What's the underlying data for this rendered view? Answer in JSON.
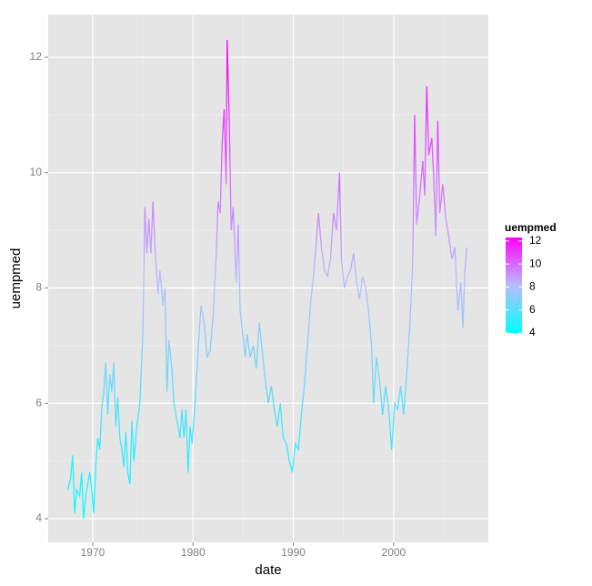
{
  "chart_data": {
    "type": "line",
    "x_label": "date",
    "y_label": "uempmed",
    "xlim": [
      1965.56,
      2009.44
    ],
    "ylim": [
      3.59,
      12.74
    ],
    "xticks": [
      1970,
      1980,
      1990,
      2000
    ],
    "yticks": [
      4,
      6,
      8,
      10,
      12
    ],
    "xminor": [
      1965,
      1975,
      1985,
      1995,
      2005
    ],
    "yminor": [
      5,
      7,
      9,
      11
    ],
    "grid": true,
    "colorbar": {
      "title": "uempmed",
      "low": "#00ffff",
      "mid": "#b8bcff",
      "high": "#ff00ff",
      "range": [
        4,
        12.3
      ],
      "ticks": [
        4,
        6,
        8,
        10,
        12
      ]
    },
    "x": [
      1967.5,
      1967.8,
      1968.0,
      1968.2,
      1968.4,
      1968.7,
      1968.9,
      1969.1,
      1969.3,
      1969.5,
      1969.7,
      1969.9,
      1970.1,
      1970.3,
      1970.5,
      1970.7,
      1970.9,
      1971.1,
      1971.3,
      1971.5,
      1971.7,
      1971.9,
      1972.1,
      1972.3,
      1972.5,
      1972.7,
      1972.9,
      1973.1,
      1973.3,
      1973.5,
      1973.7,
      1973.9,
      1974.1,
      1974.4,
      1974.7,
      1975.0,
      1975.2,
      1975.4,
      1975.6,
      1975.8,
      1976.0,
      1976.2,
      1976.5,
      1976.7,
      1977.0,
      1977.2,
      1977.4,
      1977.6,
      1977.9,
      1978.1,
      1978.4,
      1978.7,
      1978.9,
      1979.1,
      1979.3,
      1979.5,
      1979.7,
      1979.9,
      1980.2,
      1980.5,
      1980.8,
      1981.1,
      1981.4,
      1981.7,
      1982.0,
      1982.3,
      1982.5,
      1982.7,
      1982.9,
      1983.1,
      1983.3,
      1983.4,
      1983.6,
      1983.8,
      1984.0,
      1984.3,
      1984.5,
      1984.7,
      1984.9,
      1985.2,
      1985.4,
      1985.7,
      1986.0,
      1986.3,
      1986.6,
      1986.9,
      1987.2,
      1987.5,
      1987.8,
      1988.1,
      1988.4,
      1988.7,
      1989.0,
      1989.3,
      1989.6,
      1989.9,
      1990.2,
      1990.5,
      1990.8,
      1991.1,
      1991.4,
      1991.7,
      1992.0,
      1992.3,
      1992.5,
      1992.8,
      1993.1,
      1993.4,
      1993.7,
      1994.0,
      1994.3,
      1994.6,
      1994.8,
      1995.1,
      1995.4,
      1995.7,
      1996.0,
      1996.3,
      1996.6,
      1996.9,
      1997.2,
      1997.5,
      1997.8,
      1998.0,
      1998.3,
      1998.6,
      1998.9,
      1999.2,
      1999.5,
      1999.8,
      2000.1,
      2000.4,
      2000.7,
      2001.0,
      2001.3,
      2001.6,
      2001.9,
      2002.1,
      2002.3,
      2002.6,
      2002.9,
      2003.1,
      2003.3,
      2003.5,
      2003.8,
      2004.0,
      2004.2,
      2004.4,
      2004.6,
      2004.9,
      2005.2,
      2005.5,
      2005.8,
      2006.1,
      2006.4,
      2006.7,
      2006.9,
      2007.1,
      2007.3
    ],
    "values": [
      4.5,
      4.7,
      5.1,
      4.1,
      4.5,
      4.4,
      4.8,
      4.0,
      4.4,
      4.6,
      4.8,
      4.5,
      4.1,
      4.9,
      5.4,
      5.2,
      5.9,
      6.2,
      6.7,
      5.8,
      6.5,
      6.2,
      6.7,
      5.6,
      6.1,
      5.4,
      5.2,
      4.9,
      5.5,
      4.8,
      4.6,
      5.7,
      5.0,
      5.6,
      6.0,
      7.2,
      9.4,
      8.6,
      9.2,
      8.6,
      9.5,
      8.7,
      7.9,
      8.3,
      7.7,
      8.0,
      6.2,
      7.1,
      6.6,
      6.0,
      5.7,
      5.4,
      5.9,
      5.4,
      5.9,
      4.8,
      5.6,
      5.3,
      6.0,
      6.9,
      7.7,
      7.4,
      6.8,
      6.9,
      7.5,
      8.5,
      9.5,
      9.3,
      10.5,
      11.1,
      9.8,
      12.3,
      11.0,
      9.0,
      9.4,
      8.1,
      9.1,
      7.6,
      7.3,
      6.8,
      7.2,
      6.8,
      7.0,
      6.6,
      7.4,
      6.9,
      6.4,
      6.0,
      6.3,
      5.9,
      5.6,
      6.0,
      5.4,
      5.3,
      5.0,
      4.8,
      5.3,
      5.2,
      5.8,
      6.3,
      7.0,
      7.7,
      8.2,
      8.8,
      9.3,
      8.7,
      8.3,
      8.2,
      8.5,
      9.3,
      9.0,
      10.0,
      8.5,
      8.0,
      8.2,
      8.3,
      8.6,
      8.1,
      7.8,
      8.2,
      8.0,
      7.6,
      7.0,
      6.0,
      6.8,
      6.4,
      5.8,
      6.3,
      5.9,
      5.2,
      6.0,
      5.9,
      6.3,
      5.8,
      6.5,
      7.3,
      8.4,
      11.0,
      9.1,
      9.6,
      10.2,
      9.6,
      11.5,
      10.3,
      10.6,
      9.9,
      8.9,
      10.9,
      9.3,
      9.8,
      9.2,
      8.9,
      8.5,
      8.7,
      7.6,
      8.1,
      7.3,
      8.3,
      8.7
    ]
  }
}
